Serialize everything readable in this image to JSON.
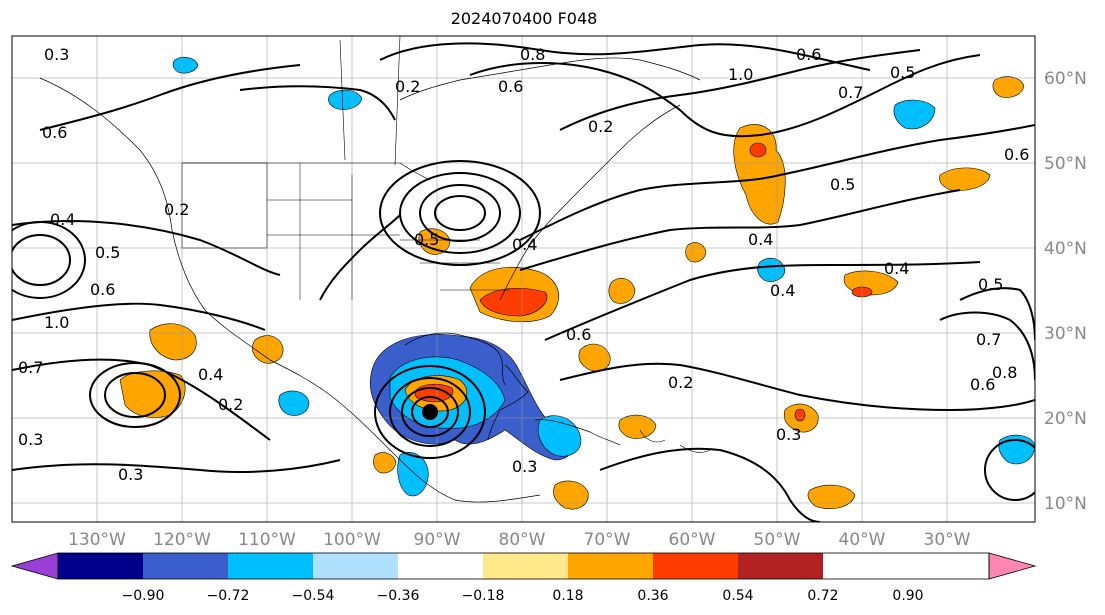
{
  "title": "2024070400 F048",
  "lon_ticks": [
    "130°W",
    "120°W",
    "110°W",
    "100°W",
    "90°W",
    "80°W",
    "70°W",
    "60°W",
    "50°W",
    "40°W",
    "30°W"
  ],
  "lat_ticks": [
    "60°N",
    "50°N",
    "40°N",
    "30°N",
    "20°N",
    "10°N"
  ],
  "colorbar": {
    "colors": [
      "#9a3fd6",
      "#00008b",
      "#3a5fcd",
      "#00bfff",
      "#afe1ff",
      "#ffffff",
      "#ffe98a",
      "#ffa500",
      "#ff3d00",
      "#b22222",
      "#ff86b0"
    ],
    "ticks": [
      "−0.90",
      "−0.72",
      "−0.54",
      "−0.36",
      "−0.18",
      "0.18",
      "0.36",
      "0.54",
      "0.72",
      "0.90"
    ]
  },
  "contour_labels": [
    "0.3",
    "0.2",
    "0.6",
    "0.8",
    "1.0",
    "0.5",
    "0.7",
    "0.6",
    "0.4",
    "0.5",
    "0.2",
    "0.4",
    "0.5",
    "0.6",
    "0.2",
    "0.4",
    "0.4",
    "0.4",
    "0.5",
    "0.7",
    "0.8",
    "0.6",
    "0.2",
    "0.3",
    "0.3",
    "0.7",
    "1.0",
    "0.3",
    "0.4",
    "0.2",
    "0.6",
    "0.3",
    "0.5",
    "0.6",
    "0.6"
  ]
}
